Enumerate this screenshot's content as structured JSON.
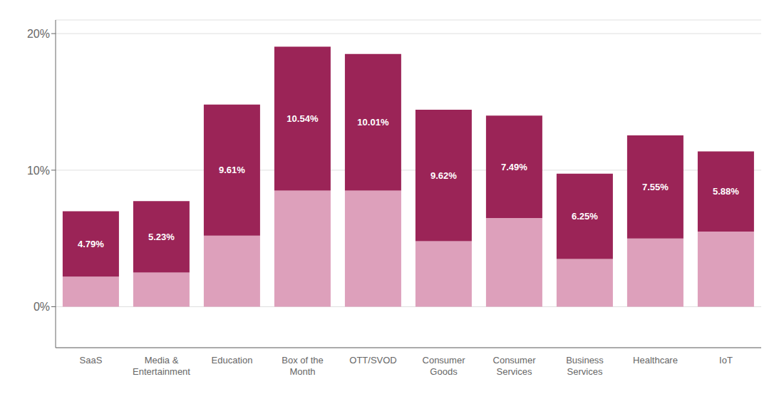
{
  "chart_data": {
    "type": "bar",
    "stacked": true,
    "grid": true,
    "categories": [
      "SaaS",
      "Media &\nEntertainment",
      "Education",
      "Box of the\nMonth",
      "OTT/SVOD",
      "Consumer\nGoods",
      "Consumer\nServices",
      "Business\nServices",
      "Healthcare",
      "IoT"
    ],
    "series": [
      {
        "color": "#dda0bb",
        "values": [
          2.2,
          2.5,
          5.2,
          8.5,
          8.5,
          4.8,
          6.5,
          3.5,
          5.0,
          5.5
        ]
      },
      {
        "color": "#9b2457",
        "values": [
          4.79,
          5.23,
          9.61,
          10.54,
          10.01,
          9.62,
          7.49,
          6.25,
          7.55,
          5.88
        ],
        "data_labels": true,
        "value_labels": [
          "4.79%",
          "5.23%",
          "9.61%",
          "10.54%",
          "10.01%",
          "9.62%",
          "7.49%",
          "6.25%",
          "7.55%",
          "5.88%"
        ]
      }
    ],
    "ylim": [
      -3,
      21
    ],
    "yticks": [
      {
        "value": 0,
        "label": "0%"
      },
      {
        "value": 10,
        "label": "10%"
      },
      {
        "value": 20,
        "label": "20%"
      }
    ]
  }
}
